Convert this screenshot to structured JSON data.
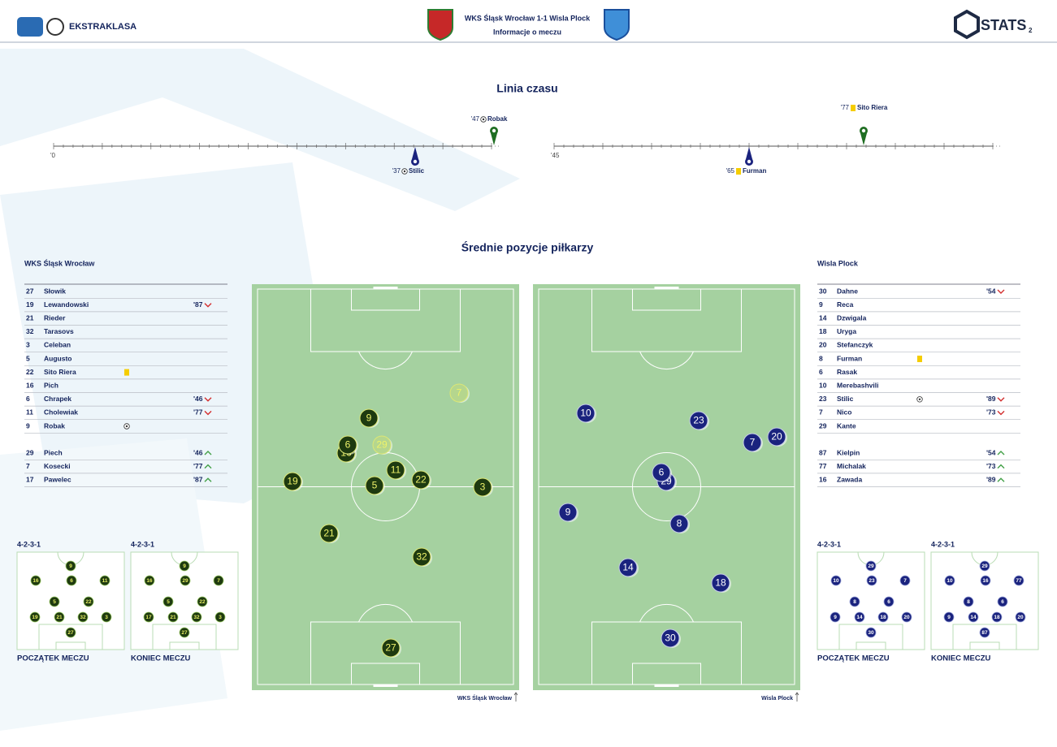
{
  "header": {
    "league": "EKSTRAKLASA",
    "match_title": "WKS Śląsk Wrocław 1-1 Wisla Plock",
    "subtitle": "Informacje o meczu",
    "brand": "STATS",
    "page_number": "2"
  },
  "timeline": {
    "title": "Linia czasu",
    "halves": [
      {
        "start": "'0",
        "events": [
          {
            "minute": "'47",
            "player": "Robak",
            "team": "home",
            "kind": "goal"
          },
          {
            "minute": "'37",
            "player": "Stilic",
            "team": "away",
            "kind": "goal"
          }
        ]
      },
      {
        "start": "'45",
        "events": [
          {
            "minute": "'77",
            "player": "Sito Riera",
            "team": "home",
            "kind": "yellow"
          },
          {
            "minute": "'65",
            "player": "Furman",
            "team": "away",
            "kind": "yellow"
          }
        ]
      }
    ]
  },
  "positions_title": "Średnie pozycje piłkarzy",
  "teams": [
    {
      "name": "WKS Śląsk Wrocław",
      "starters": [
        {
          "number": 27,
          "name": "Słowik"
        },
        {
          "number": 19,
          "name": "Lewandowski",
          "sub": "'87",
          "sub_dir": "out"
        },
        {
          "number": 21,
          "name": "Rieder"
        },
        {
          "number": 32,
          "name": "Tarasovs"
        },
        {
          "number": 3,
          "name": "Celeban"
        },
        {
          "number": 5,
          "name": "Augusto"
        },
        {
          "number": 22,
          "name": "Sito Riera",
          "card": "yellow"
        },
        {
          "number": 16,
          "name": "Pich"
        },
        {
          "number": 6,
          "name": "Chrapek",
          "sub": "'46",
          "sub_dir": "out"
        },
        {
          "number": 11,
          "name": "Cholewiak",
          "sub": "'77",
          "sub_dir": "out"
        },
        {
          "number": 9,
          "name": "Robak",
          "goal": true
        }
      ],
      "subs": [
        {
          "number": 29,
          "name": "Piech",
          "sub": "'46",
          "sub_dir": "in"
        },
        {
          "number": 7,
          "name": "Kosecki",
          "sub": "'77",
          "sub_dir": "in"
        },
        {
          "number": 17,
          "name": "Pawelec",
          "sub": "'87",
          "sub_dir": "in"
        }
      ],
      "formations": [
        {
          "formation": "4-2-3-1",
          "label": "POCZĄTEK MECZU",
          "rows": [
            [
              9
            ],
            [
              16,
              6,
              11
            ],
            [
              5,
              22
            ],
            [
              19,
              21,
              32,
              3
            ],
            [
              27
            ]
          ]
        },
        {
          "formation": "4-2-3-1",
          "label": "KONIEC MECZU",
          "rows": [
            [
              9
            ],
            [
              16,
              29,
              7
            ],
            [
              5,
              22
            ],
            [
              17,
              21,
              32,
              3
            ],
            [
              27
            ]
          ]
        }
      ],
      "pitch": {
        "team_label": "WKS Śląsk Wrocław",
        "players": [
          {
            "number": 7,
            "sub": true
          },
          {
            "number": 9
          },
          {
            "number": 16
          },
          {
            "number": 6
          },
          {
            "number": 29,
            "sub": true
          },
          {
            "number": 19
          },
          {
            "number": 5
          },
          {
            "number": 11
          },
          {
            "number": 22
          },
          {
            "number": 3
          },
          {
            "number": 21
          },
          {
            "number": 32
          },
          {
            "number": 27
          }
        ]
      }
    },
    {
      "name": "Wisla Plock",
      "starters": [
        {
          "number": 30,
          "name": "Dahne",
          "sub": "'54",
          "sub_dir": "out"
        },
        {
          "number": 9,
          "name": "Reca"
        },
        {
          "number": 14,
          "name": "Dzwigala"
        },
        {
          "number": 18,
          "name": "Uryga"
        },
        {
          "number": 20,
          "name": "Stefanczyk"
        },
        {
          "number": 8,
          "name": "Furman",
          "card": "yellow"
        },
        {
          "number": 6,
          "name": "Rasak"
        },
        {
          "number": 10,
          "name": "Merebashvili"
        },
        {
          "number": 23,
          "name": "Stilic",
          "goal": true,
          "sub": "'89",
          "sub_dir": "out"
        },
        {
          "number": 7,
          "name": "Nico",
          "sub": "'73",
          "sub_dir": "out"
        },
        {
          "number": 29,
          "name": "Kante"
        }
      ],
      "subs": [
        {
          "number": 87,
          "name": "Kielpin",
          "sub": "'54",
          "sub_dir": "in"
        },
        {
          "number": 77,
          "name": "Michalak",
          "sub": "'73",
          "sub_dir": "in"
        },
        {
          "number": 16,
          "name": "Zawada",
          "sub": "'89",
          "sub_dir": "in"
        }
      ],
      "formations": [
        {
          "formation": "4-2-3-1",
          "label": "POCZĄTEK MECZU",
          "rows": [
            [
              29
            ],
            [
              10,
              23,
              7
            ],
            [
              8,
              6
            ],
            [
              9,
              14,
              18,
              20
            ],
            [
              30
            ]
          ]
        },
        {
          "formation": "4-2-3-1",
          "label": "KONIEC MECZU",
          "rows": [
            [
              29
            ],
            [
              10,
              16,
              77
            ],
            [
              8,
              6
            ],
            [
              9,
              14,
              18,
              20
            ],
            [
              87
            ]
          ]
        }
      ],
      "pitch": {
        "team_label": "Wisla Plock",
        "players": [
          {
            "number": 10
          },
          {
            "number": 23
          },
          {
            "number": 20
          },
          {
            "number": 7
          },
          {
            "number": 29
          },
          {
            "number": 6
          },
          {
            "number": 9
          },
          {
            "number": 8
          },
          {
            "number": 14
          },
          {
            "number": 18
          },
          {
            "number": 30
          }
        ]
      }
    }
  ]
}
